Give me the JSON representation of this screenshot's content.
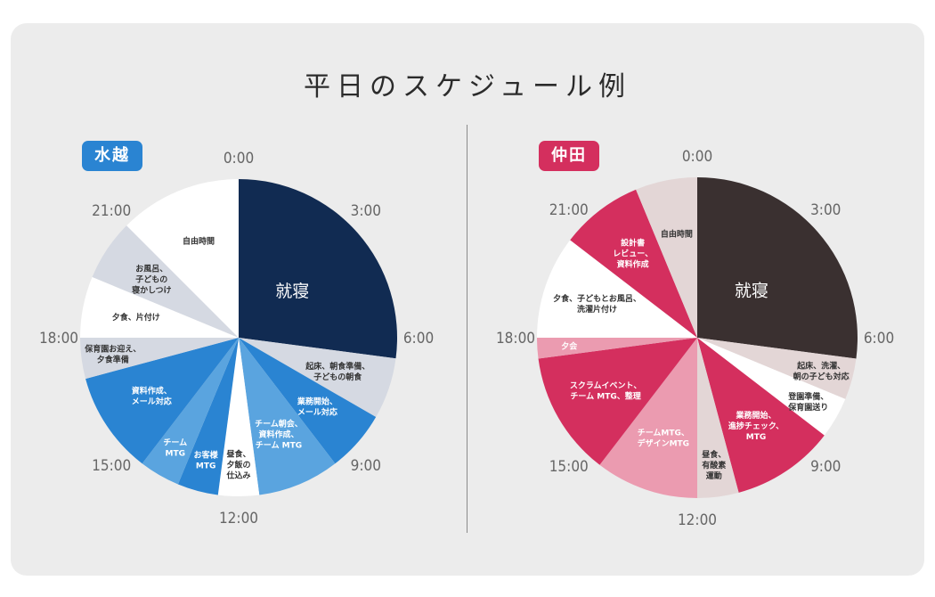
{
  "title": "平日のスケジュール例",
  "colors": {
    "card": "#ececec",
    "divider": "#8a8a8a",
    "tick": "#666666"
  },
  "chart_data": [
    {
      "type": "pie",
      "name": "水越",
      "badge_color": "#2a84d2",
      "units": "hours (24h clock, starting at 0:00 at top, clockwise)",
      "tick_labels": [
        "0:00",
        "3:00",
        "6:00",
        "9:00",
        "12:00",
        "15:00",
        "18:00",
        "21:00"
      ],
      "segments": [
        {
          "label": [
            "就寝"
          ],
          "start": 0,
          "end": 6.5,
          "color": "#112b52",
          "text_color": "#ffffff",
          "big": true
        },
        {
          "label": [
            "起床、朝食準備、",
            "子どもの朝食"
          ],
          "start": 6.5,
          "end": 8,
          "color": "#d5d9e2",
          "text_color": "#333333"
        },
        {
          "label": [
            "業務開始、",
            "メール対応"
          ],
          "start": 8,
          "end": 9.5,
          "color": "#2a84d2",
          "text_color": "#ffffff"
        },
        {
          "label": [
            "チーム朝会、",
            "資料作成、",
            "チーム MTG"
          ],
          "start": 9.5,
          "end": 11.5,
          "color": "#5aa4df",
          "text_color": "#ffffff"
        },
        {
          "label": [
            "昼食、",
            "夕飯の",
            "仕込み"
          ],
          "start": 11.5,
          "end": 12.5,
          "color": "#ffffff",
          "text_color": "#333333"
        },
        {
          "label": [
            "お客様",
            "MTG"
          ],
          "start": 12.5,
          "end": 13.5,
          "color": "#2a84d2",
          "text_color": "#ffffff"
        },
        {
          "label": [
            "チーム",
            "MTG"
          ],
          "start": 13.5,
          "end": 14.5,
          "color": "#5aa4df",
          "text_color": "#ffffff"
        },
        {
          "label": [
            "資料作成、",
            "メール対応"
          ],
          "start": 14.5,
          "end": 17,
          "color": "#2a84d2",
          "text_color": "#ffffff"
        },
        {
          "label": [
            "保育園お迎え、",
            "夕食準備"
          ],
          "start": 17,
          "end": 18,
          "color": "#d5d9e2",
          "text_color": "#333333"
        },
        {
          "label": [
            "夕食、片付け"
          ],
          "start": 18,
          "end": 19.5,
          "color": "#ffffff",
          "text_color": "#333333"
        },
        {
          "label": [
            "お風呂、",
            "子どもの",
            "寝かしつけ"
          ],
          "start": 19.5,
          "end": 21,
          "color": "#d5d9e2",
          "text_color": "#333333"
        },
        {
          "label": [
            "自由時間"
          ],
          "start": 21,
          "end": 24,
          "color": "#ffffff",
          "text_color": "#333333"
        }
      ]
    },
    {
      "type": "pie",
      "name": "仲田",
      "badge_color": "#d42f5e",
      "units": "hours (24h clock, starting at 0:00 at top, clockwise)",
      "tick_labels": [
        "0:00",
        "3:00",
        "6:00",
        "9:00",
        "12:00",
        "15:00",
        "18:00",
        "21:00"
      ],
      "segments": [
        {
          "label": [
            "就寝"
          ],
          "start": 0,
          "end": 6.5,
          "color": "#3a3030",
          "text_color": "#ffffff",
          "big": true
        },
        {
          "label": [
            "起床、洗濯、",
            "朝の子ども対応"
          ],
          "start": 6.5,
          "end": 7.5,
          "color": "#e3d6d6",
          "text_color": "#333333"
        },
        {
          "label": [
            "登園準備、",
            "保育園送り"
          ],
          "start": 7.5,
          "end": 8.5,
          "color": "#ffffff",
          "text_color": "#333333"
        },
        {
          "label": [
            "業務開始、",
            "進捗チェック、",
            "MTG"
          ],
          "start": 8.5,
          "end": 11,
          "color": "#d42f5e",
          "text_color": "#ffffff"
        },
        {
          "label": [
            "昼食、",
            "有酸素",
            "運動"
          ],
          "start": 11,
          "end": 12,
          "color": "#e3d6d6",
          "text_color": "#333333"
        },
        {
          "label": [
            "チームMTG、",
            "デザインMTG"
          ],
          "start": 12,
          "end": 14.5,
          "color": "#eb9bb0",
          "text_color": "#ffffff"
        },
        {
          "label": [
            "スクラムイベント、",
            "チーム MTG、整理"
          ],
          "start": 14.5,
          "end": 17.5,
          "color": "#d42f5e",
          "text_color": "#ffffff"
        },
        {
          "label": [
            "夕会"
          ],
          "start": 17.5,
          "end": 18,
          "color": "#eb9bb0",
          "text_color": "#ffffff"
        },
        {
          "label": [
            "夕食、子どもとお風呂、",
            "洗濯片付け"
          ],
          "start": 18,
          "end": 20.5,
          "color": "#ffffff",
          "text_color": "#333333"
        },
        {
          "label": [
            "設計書",
            "レビュー、",
            "資料作成"
          ],
          "start": 20.5,
          "end": 22.5,
          "color": "#d42f5e",
          "text_color": "#ffffff"
        },
        {
          "label": [
            "自由時間"
          ],
          "start": 22.5,
          "end": 24,
          "color": "#e3d6d6",
          "text_color": "#333333"
        }
      ]
    }
  ]
}
